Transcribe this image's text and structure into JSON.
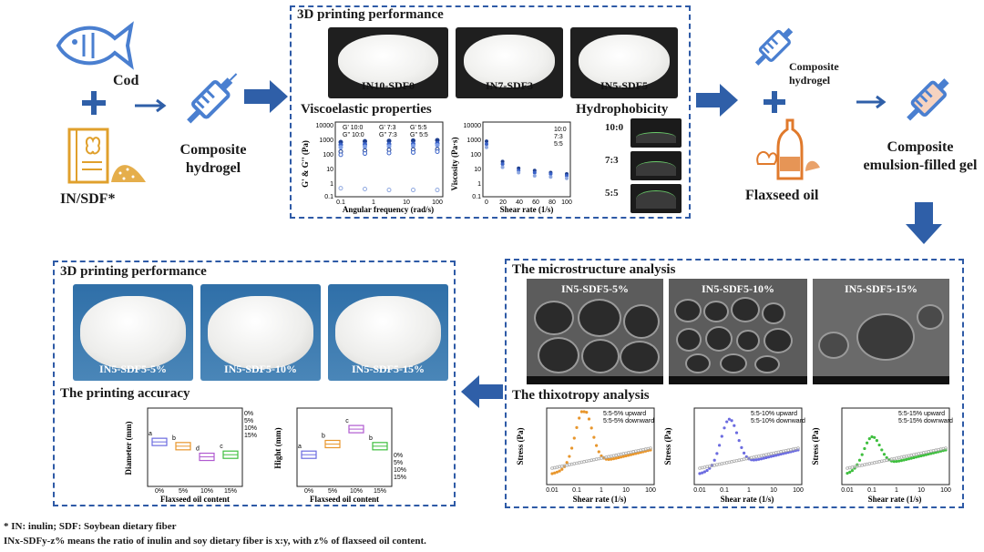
{
  "left_panel": {
    "cod_label": "Cod",
    "insdf_label": "IN/SDF*",
    "composite_hydrogel_label": "Composite\nhydrogel"
  },
  "top_box": {
    "title": "3D printing performance",
    "photos": [
      "IN10-SDF0",
      "IN7-SDF3",
      "IN5-SDF5"
    ],
    "visco_title": "Viscoelastic properties",
    "hydro_title": "Hydrophobicity",
    "drops": [
      "10:0",
      "7:3",
      "5:5"
    ]
  },
  "right_panel": {
    "composite_hydrogel_label": "Composite\nhydrogel",
    "flaxseed_label": "Flaxseed oil",
    "emulsion_label": "Composite\nemulsion-filled gel"
  },
  "bottom_left_box": {
    "title": "3D printing performance",
    "photos": [
      "IN5-SDF5-5%",
      "IN5-SDF5-10%",
      "IN5-SDF5-15%"
    ],
    "accuracy_title": "The printing accuracy"
  },
  "bottom_right_box": {
    "micro_title": "The microstructure analysis",
    "sem": [
      "IN5-SDF5-5%",
      "IN5-SDF5-10%",
      "IN5-SDF5-15%"
    ],
    "thixo_title": "The thixotropy analysis"
  },
  "footnotes": {
    "line1": "* IN: inulin; SDF: Soybean dietary fiber",
    "line2": "INx-SDFy-z% means the ratio of inulin and soy dietary fiber is x:y, with z% of flaxseed oil content."
  },
  "colors": {
    "accent_blue": "#2e5aa6",
    "arrow_blue": "#2f5fa8",
    "icon_blue": "#4a7fd0",
    "icon_orange": "#e07a2c"
  },
  "chart_data": [
    {
      "type": "scatter",
      "chart": "viscoelastic",
      "xlabel": "Angular frequency (rad/s)",
      "ylabel": "G' & G'' (Pa)",
      "x_ticks": [
        "0.1",
        "1",
        "10",
        "100"
      ],
      "y_ticks": [
        "10000",
        "1000",
        "100",
        "10",
        "1",
        "0.1"
      ],
      "xscale": "log",
      "yscale": "log",
      "legend": [
        "G' 10:0",
        "G' 7:3",
        "G' 5:5",
        "G'' 10:0",
        "G'' 7:3",
        "G'' 5:5"
      ],
      "series": [
        {
          "name": "G' 10:0",
          "values": [
            700,
            800,
            850,
            900,
            950
          ]
        },
        {
          "name": "G' 7:3",
          "values": [
            450,
            480,
            500,
            520,
            560
          ]
        },
        {
          "name": "G' 5:5",
          "values": [
            300,
            330,
            350,
            380,
            420
          ]
        },
        {
          "name": "G'' 10:0",
          "values": [
            150,
            180,
            200,
            210,
            220
          ]
        },
        {
          "name": "G'' 7:3",
          "values": [
            90,
            110,
            120,
            130,
            150
          ]
        },
        {
          "name": "G'' 5:5",
          "values": [
            0.4,
            0.35,
            0.3,
            0.3,
            0.3
          ]
        }
      ]
    },
    {
      "type": "scatter",
      "chart": "viscosity",
      "xlabel": "Shear rate (1/s)",
      "ylabel": "Viscosity (Pa·s)",
      "x_ticks": [
        "0",
        "20",
        "40",
        "60",
        "80",
        "100"
      ],
      "y_ticks": [
        "10000",
        "1000",
        "100",
        "10",
        "1",
        "0.1"
      ],
      "legend": [
        "10:0",
        "7:3",
        "5:5"
      ],
      "series": [
        {
          "name": "10:0",
          "values": [
            800,
            30,
            10,
            7,
            5,
            4
          ]
        },
        {
          "name": "7:3",
          "values": [
            500,
            20,
            7,
            5,
            4,
            3
          ]
        },
        {
          "name": "5:5",
          "values": [
            300,
            12,
            5,
            3,
            2.5,
            2
          ]
        }
      ]
    },
    {
      "type": "box",
      "chart": "diameter",
      "xlabel": "Flaxseed oil content",
      "ylabel": "Diameter (mm)",
      "categories": [
        "0%",
        "5%",
        "10%",
        "15%"
      ],
      "values": [
        40,
        38,
        33,
        34
      ],
      "letters": [
        "a",
        "b",
        "d",
        "c"
      ],
      "legend": [
        "0%",
        "5%",
        "10%",
        "15%"
      ]
    },
    {
      "type": "box",
      "chart": "hight",
      "xlabel": "Flaxseed oil content",
      "ylabel": "Hight (mm)",
      "categories": [
        "0%",
        "5%",
        "10%",
        "15%"
      ],
      "values": [
        6.8,
        7.8,
        9.2,
        7.6
      ],
      "letters": [
        "a",
        "b",
        "c",
        "b"
      ],
      "legend": [
        "0%",
        "5%",
        "10%",
        "15%"
      ]
    },
    {
      "type": "scatter",
      "chart": "thixotropy",
      "xlabel": "Shear rate (1/s)",
      "ylabel": "Stress (Pa)",
      "x_ticks": [
        "0.01",
        "0.1",
        "1",
        "10",
        "100"
      ],
      "panels": [
        {
          "legend": [
            "5:5-5% upward",
            "5:5-5% downward"
          ]
        },
        {
          "legend": [
            "5:5-10% upward",
            "5:5-10% downward"
          ]
        },
        {
          "legend": [
            "5:5-15% upward",
            "5:5-15% downward"
          ]
        }
      ]
    }
  ]
}
